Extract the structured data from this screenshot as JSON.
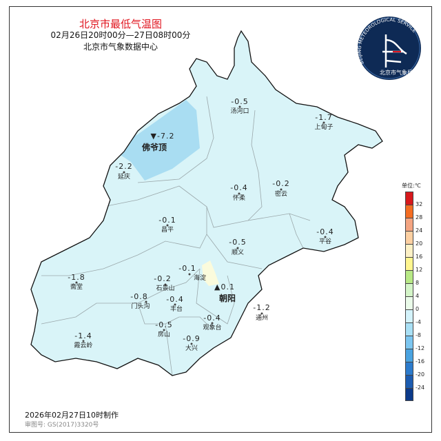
{
  "header": {
    "title": "北京市最低气温图",
    "period": "02月26日20时00分—27日08时00分",
    "source": "北京市气象数据中心"
  },
  "logo": {
    "arc_text": "BEIJING METEOROLOGICAL SERVICE",
    "name": "北京市气象局"
  },
  "legend": {
    "unit": "单位:℃",
    "labels": [
      "32",
      "28",
      "24",
      "20",
      "16",
      "12",
      "8",
      "4",
      "0",
      "-4",
      "-8",
      "-12",
      "-16",
      "-20",
      "-24"
    ],
    "colors": [
      "#d7191c",
      "#f46d22",
      "#f4a582",
      "#fdd0a2",
      "#fdf1c6",
      "#fff68f",
      "#b8e986",
      "#d4f5c8",
      "#eafbe9",
      "#d4f3fb",
      "#a9e0f5",
      "#7cc6f0",
      "#4aa3e0",
      "#2c7bcc",
      "#1c5cb0",
      "#0c3a8a"
    ]
  },
  "map_colors": {
    "base": "#d9f4f8",
    "cold": "#a9ddf2",
    "warm": "#fbfbdc",
    "outline": "#111111",
    "district": "#9aa7aa"
  },
  "stations": [
    {
      "name": "汤河口",
      "value": "-0.5"
    },
    {
      "name": "上甸子",
      "value": "-1.7"
    },
    {
      "name": "佛爷顶",
      "value": "▼-7.2",
      "marker": "min"
    },
    {
      "name": "延庆",
      "value": "-2.2"
    },
    {
      "name": "怀柔",
      "value": "-0.4"
    },
    {
      "name": "密云",
      "value": "-0.2"
    },
    {
      "name": "昌平",
      "value": "-0.1"
    },
    {
      "name": "平谷",
      "value": "-0.4"
    },
    {
      "name": "顺义",
      "value": "-0.5"
    },
    {
      "name": "斋堂",
      "value": "-1.8"
    },
    {
      "name": "海淀",
      "value": "-0.1"
    },
    {
      "name": "石景山",
      "value": "-0.2"
    },
    {
      "name": "门头沟",
      "value": "-0.8"
    },
    {
      "name": "丰台",
      "value": "-0.4"
    },
    {
      "name": "朝阳",
      "value": "▲0.1",
      "marker": "max"
    },
    {
      "name": "通州",
      "value": "-1.2"
    },
    {
      "name": "观象台",
      "value": "-0.4"
    },
    {
      "name": "房山",
      "value": "-0.5"
    },
    {
      "name": "大兴",
      "value": "-0.9"
    },
    {
      "name": "霞云岭",
      "value": "-1.4"
    }
  ],
  "footer": {
    "made": "2026年02月27日10时制作",
    "review": "审图号: GS(2017)3320号"
  }
}
